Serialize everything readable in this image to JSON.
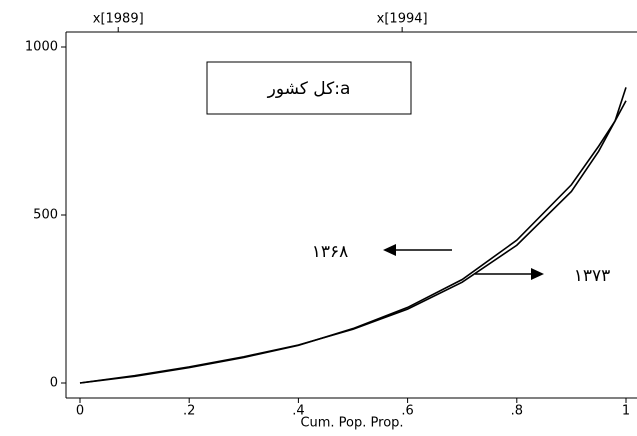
{
  "chart_data": {
    "type": "line",
    "x_label": "Cum. Pop. Prop.",
    "x": [
      0,
      0.1,
      0.2,
      0.3,
      0.4,
      0.5,
      0.6,
      0.7,
      0.8,
      0.9,
      0.95,
      0.98,
      1
    ],
    "series": [
      {
        "color": "#000000",
        "values": [
          0,
          22,
          48,
          78,
          113,
          160,
          220,
          300,
          410,
          570,
          690,
          780,
          880
        ]
      },
      {
        "color": "#000000",
        "values": [
          0,
          20,
          46,
          76,
          112,
          162,
          225,
          308,
          425,
          590,
          705,
          780,
          840
        ]
      }
    ],
    "xlim": [
      0,
      1
    ],
    "ylim": [
      0,
      1000
    ],
    "xticks": [
      0,
      {
        "value": 0.2,
        "label": ".2"
      },
      {
        "value": 0.4,
        "label": ".4"
      },
      {
        "value": 0.6,
        "label": ".6"
      },
      {
        "value": 0.8,
        "label": ".8"
      },
      1
    ],
    "yticks": [
      0,
      500,
      1000
    ],
    "x2ticks": [
      {
        "value": 0.07,
        "label": "x[1989]"
      },
      {
        "value": 0.59,
        "label": "x[1994]"
      }
    ],
    "annotations": {
      "box": "a:کل کشور",
      "left_arrow": "۱۳۶۸",
      "right_arrow": "۱۳۷۳"
    }
  }
}
